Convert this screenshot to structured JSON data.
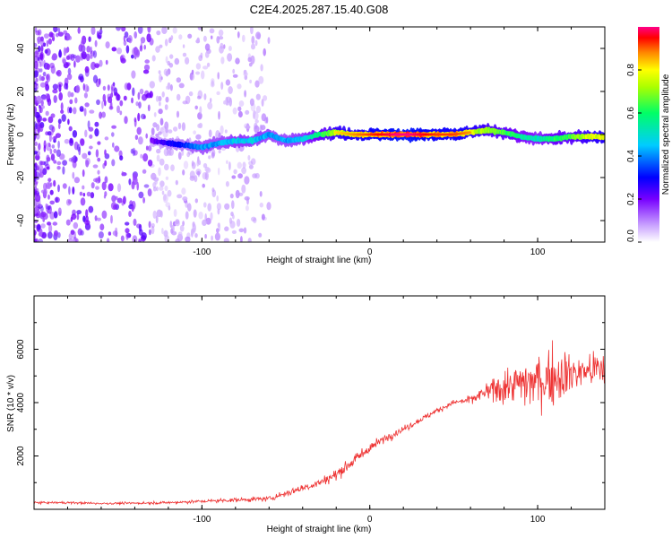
{
  "figure_title": "C2E4.2025.287.15.40.G08",
  "chart_data": [
    {
      "type": "heatmap",
      "title": "C2E4.2025.287.15.40.G08",
      "xlabel": "Height of straight line (km)",
      "ylabel": "Frequency (Hz)",
      "xlim": [
        -200,
        140
      ],
      "ylim": [
        -50,
        50
      ],
      "xticks": [
        -100,
        0,
        100
      ],
      "yticks": [
        -40,
        -20,
        0,
        20,
        40
      ],
      "colorbar": {
        "label": "Normalized spectral amplitude",
        "range": [
          0.0,
          1.0
        ],
        "ticks": [
          0.0,
          0.2,
          0.4,
          0.6,
          0.8
        ],
        "tick_labels": [
          "0.0",
          "0.2",
          "0.4",
          "0.6",
          "0.8"
        ],
        "colormap": [
          "#ffffff",
          "#7700ff",
          "#0000ff",
          "#00ffff",
          "#00ff00",
          "#ffff00",
          "#ff0000",
          "#ff0088"
        ]
      },
      "ridge": {
        "description": "dominant frequency ridge near 0 Hz",
        "x": [
          -130,
          -120,
          -110,
          -100,
          -90,
          -80,
          -70,
          -60,
          -50,
          -40,
          -30,
          -20,
          -10,
          0,
          10,
          20,
          30,
          40,
          50,
          60,
          70,
          80,
          90,
          100,
          110,
          120,
          130,
          140
        ],
        "freq": [
          -3,
          -4,
          -5,
          -6,
          -4,
          -3,
          -3,
          0,
          -3,
          -2,
          0,
          1,
          0,
          0,
          0,
          0,
          0,
          0,
          0,
          1,
          2,
          1,
          -1,
          -2,
          -2,
          -1,
          -1,
          -1
        ],
        "amplitude": [
          0.2,
          0.3,
          0.35,
          0.45,
          0.45,
          0.5,
          0.5,
          0.45,
          0.45,
          0.5,
          0.65,
          0.8,
          0.85,
          0.9,
          0.95,
          1.0,
          0.95,
          0.9,
          0.9,
          0.85,
          0.75,
          0.7,
          0.6,
          0.55,
          0.65,
          0.7,
          0.8,
          0.85
        ]
      },
      "noise_region": {
        "x_from": -200,
        "x_to": -130,
        "level": 0.15
      }
    },
    {
      "type": "line",
      "xlabel": "Height of straight line (km)",
      "ylabel": "SNR (10 * v/v)",
      "xlim": [
        -200,
        140
      ],
      "ylim": [
        0,
        8000
      ],
      "xticks": [
        -100,
        0,
        100
      ],
      "yticks": [
        2000,
        4000,
        6000
      ],
      "color": "#ee3333",
      "series": [
        {
          "name": "SNR",
          "x": [
            -200,
            -180,
            -160,
            -140,
            -120,
            -100,
            -80,
            -60,
            -50,
            -40,
            -30,
            -20,
            -10,
            0,
            10,
            20,
            30,
            40,
            50,
            60,
            70,
            80,
            90,
            100,
            110,
            120,
            130,
            140
          ],
          "y": [
            250,
            250,
            220,
            230,
            250,
            300,
            350,
            400,
            600,
            800,
            1000,
            1300,
            1800,
            2300,
            2700,
            3000,
            3350,
            3700,
            4000,
            4100,
            4400,
            4600,
            4700,
            4800,
            5000,
            5100,
            5200,
            5300
          ],
          "spread": [
            80,
            80,
            80,
            80,
            100,
            120,
            150,
            180,
            250,
            300,
            350,
            400,
            400,
            350,
            300,
            250,
            200,
            200,
            200,
            300,
            700,
            1200,
            1700,
            2000,
            2000,
            1600,
            1400,
            1400
          ]
        }
      ]
    }
  ]
}
